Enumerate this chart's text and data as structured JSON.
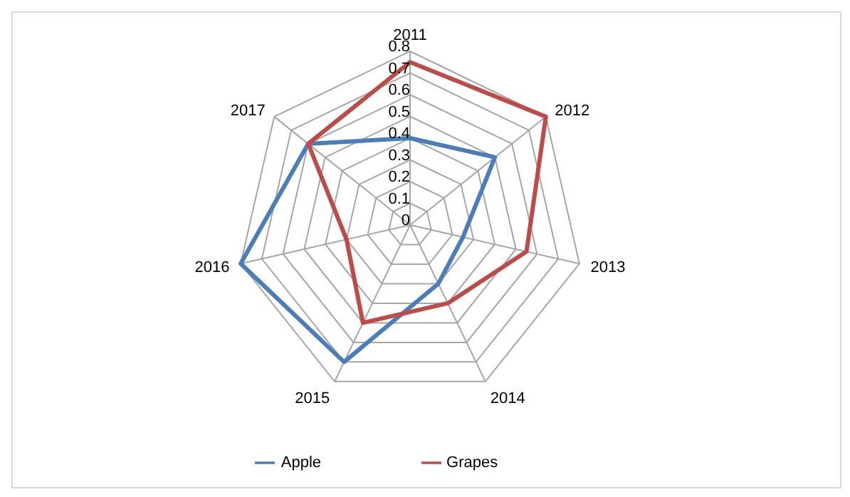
{
  "chart_data": {
    "type": "radar",
    "categories": [
      "2011",
      "2012",
      "2013",
      "2014",
      "2015",
      "2016",
      "2017"
    ],
    "series": [
      {
        "name": "Apple",
        "color": "#4a7ebb",
        "values": [
          0.4,
          0.5,
          0.25,
          0.3,
          0.7,
          0.8,
          0.6
        ]
      },
      {
        "name": "Grapes",
        "color": "#be4b48",
        "values": [
          0.75,
          0.8,
          0.55,
          0.4,
          0.5,
          0.3,
          0.6
        ]
      }
    ],
    "ylim": [
      0,
      0.8
    ],
    "yticks": [
      0,
      0.1,
      0.2,
      0.3,
      0.4,
      0.5,
      0.6,
      0.7,
      0.8
    ],
    "grid": true,
    "legend": "bottom",
    "marker": "none",
    "line_style": "solid"
  }
}
